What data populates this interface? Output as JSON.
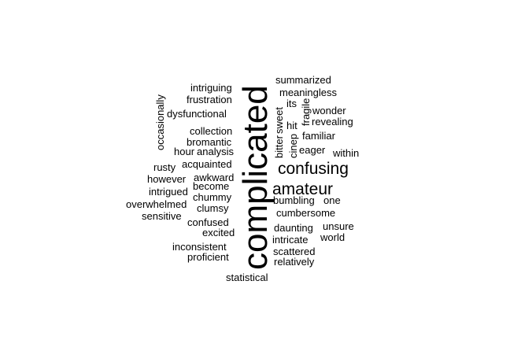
{
  "words": {
    "complicated": "complicated",
    "confusing": "confusing",
    "amateur": "amateur",
    "intriguing": "intriguing",
    "frustration": "frustration",
    "dysfunctional": "dysfunctional",
    "occasionally": "occasionally",
    "collection": "collection",
    "bromantic": "bromantic",
    "hour": "hour",
    "analysis": "analysis",
    "acquainted": "acquainted",
    "rusty": "rusty",
    "awkward": "awkward",
    "however": "however",
    "become": "become",
    "intrigued": "intrigued",
    "chummy": "chummy",
    "overwhelmed": "overwhelmed",
    "clumsy": "clumsy",
    "sensitive": "sensitive",
    "confused": "confused",
    "excited": "excited",
    "inconsistent": "inconsistent",
    "proficient": "proficient",
    "statistical": "statistical",
    "summarized": "summarized",
    "meaningless": "meaningless",
    "its": "its",
    "fragile": "fragile",
    "wonder": "wonder",
    "sweet": "sweet",
    "revealing": "revealing",
    "hit": "hit",
    "familiar": "familiar",
    "bitter": "bitter",
    "cinep": "cinep",
    "eager": "eager",
    "within": "within",
    "bumbling": "bumbling",
    "one": "one",
    "cumbersome": "cumbersome",
    "daunting": "daunting",
    "unsure": "unsure",
    "world": "world",
    "intricate": "intricate",
    "scattered": "scattered",
    "relatively": "relatively"
  }
}
